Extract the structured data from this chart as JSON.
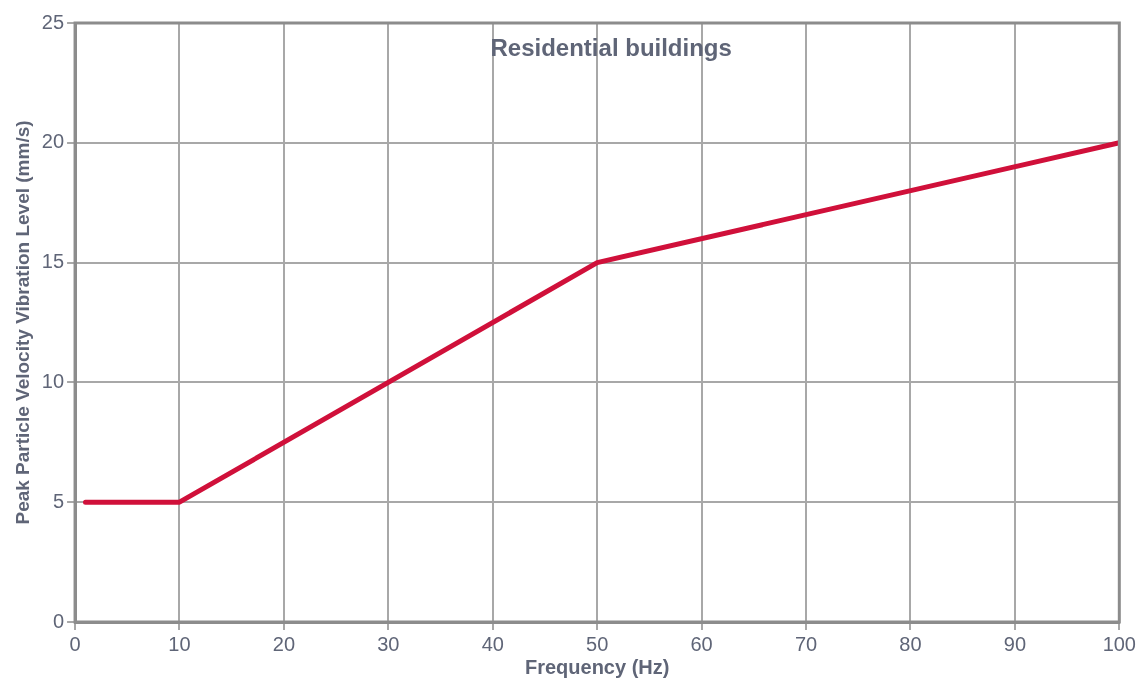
{
  "chart_data": {
    "type": "line",
    "title": "Residential buildings",
    "xlabel": "Frequency (Hz)",
    "ylabel": "Peak Particle Velocity Vibration Level (mm/s)",
    "x": [
      1,
      10,
      50,
      100
    ],
    "series": [
      {
        "color": "#d0103a",
        "values": [
          5,
          5,
          15,
          20
        ]
      }
    ],
    "xlim": [
      0,
      100
    ],
    "xticks": [
      0,
      10,
      20,
      30,
      40,
      50,
      60,
      70,
      80,
      90,
      100
    ],
    "ylim": [
      0,
      25
    ],
    "yticks": [
      0,
      5,
      10,
      15,
      20,
      25
    ],
    "grid": true,
    "legend": false,
    "marker": "none",
    "line_style": "solid"
  }
}
